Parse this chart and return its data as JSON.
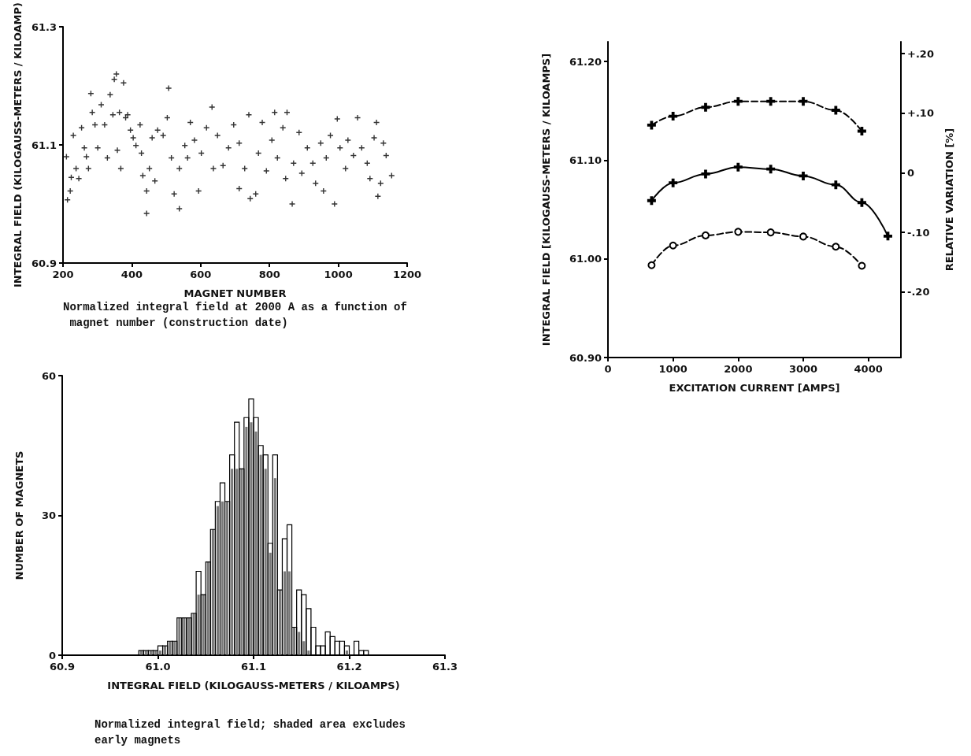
{
  "chart_data": [
    {
      "type": "scatter",
      "xlabel": "MAGNET NUMBER",
      "ylabel": "INTEGRAL FIELD (KILOGAUSS-METERS / KILOAMP)",
      "annotations": [
        "Normalized integral field at 2000 A as a function of magnet number (construction date)"
      ],
      "xlim": [
        200,
        1200
      ],
      "xticks": [
        200,
        400,
        600,
        800,
        1000,
        1200
      ],
      "ylim": [
        60.9,
        61.3
      ],
      "yticks": [
        60.9,
        61.1,
        61.3
      ],
      "marker": "cross",
      "grid": false,
      "x": [
        210,
        213,
        221,
        224,
        230,
        238,
        246,
        254,
        262,
        268,
        274,
        281,
        285,
        293,
        301,
        311,
        321,
        329,
        337,
        345,
        349,
        355,
        358,
        364,
        368,
        376,
        382,
        388,
        396,
        404,
        412,
        424,
        428,
        432,
        443,
        443,
        451,
        459,
        467,
        475,
        491,
        503,
        507,
        515,
        523,
        538,
        538,
        554,
        562,
        570,
        582,
        594,
        602,
        617,
        633,
        637,
        649,
        665,
        681,
        696,
        712,
        712,
        728,
        740,
        744,
        760,
        768,
        779,
        791,
        807,
        815,
        823,
        839,
        847,
        851,
        866,
        870,
        886,
        894,
        910,
        926,
        934,
        949,
        957,
        965,
        977,
        989,
        997,
        1005,
        1021,
        1028,
        1044,
        1056,
        1068,
        1084,
        1092,
        1104,
        1111,
        1115,
        1123,
        1131,
        1139,
        1155
      ],
      "series": [
        {
          "color": "#000000",
          "values": [
            61.08,
            61.007,
            61.022,
            61.045,
            61.116,
            61.06,
            61.043,
            61.129,
            61.095,
            61.08,
            61.06,
            61.187,
            61.155,
            61.134,
            61.095,
            61.168,
            61.134,
            61.078,
            61.185,
            61.151,
            61.211,
            61.22,
            61.091,
            61.155,
            61.06,
            61.205,
            61.146,
            61.151,
            61.125,
            61.112,
            61.099,
            61.134,
            61.086,
            61.048,
            61.022,
            60.984,
            61.06,
            61.112,
            61.039,
            61.125,
            61.116,
            61.146,
            61.196,
            61.078,
            61.017,
            60.992,
            61.06,
            61.099,
            61.078,
            61.138,
            61.108,
            61.022,
            61.086,
            61.129,
            61.164,
            61.06,
            61.116,
            61.065,
            61.095,
            61.134,
            61.103,
            61.026,
            61.06,
            61.151,
            61.009,
            61.017,
            61.086,
            61.138,
            61.056,
            61.108,
            61.155,
            61.078,
            61.129,
            61.043,
            61.155,
            61.0,
            61.069,
            61.121,
            61.052,
            61.095,
            61.069,
            61.035,
            61.103,
            61.022,
            61.078,
            61.116,
            61.0,
            61.144,
            61.095,
            61.06,
            61.108,
            61.082,
            61.146,
            61.095,
            61.069,
            61.043,
            61.112,
            61.138,
            61.013,
            61.035,
            61.103,
            61.082,
            61.048
          ]
        }
      ]
    },
    {
      "type": "line",
      "xlabel": "EXCITATION CURRENT [AMPS]",
      "ylabel": "INTEGRAL FIELD [KILOGAUSS-METERS / KILOAMPS]",
      "y2label": "RELATIVE VARIATION [%]",
      "xlim": [
        0,
        4500
      ],
      "xticks": [
        0,
        1000,
        2000,
        3000,
        4000
      ],
      "ylim": [
        60.9,
        61.22
      ],
      "yticks": [
        {
          "value": 60.9,
          "label": "60.90"
        },
        {
          "value": 61.0,
          "label": "61.00"
        },
        {
          "value": 61.1,
          "label": "61.10"
        },
        {
          "value": 61.2,
          "label": "61.20"
        }
      ],
      "y2lim": [
        -0.31,
        0.22
      ],
      "y2ticks": [
        {
          "value": -0.2,
          "label": "-.20"
        },
        {
          "value": -0.1,
          "label": "-.10"
        },
        0,
        {
          "value": 0.1,
          "label": "+.10"
        },
        {
          "value": 0.2,
          "label": "+.20"
        }
      ],
      "grid": false,
      "x": [
        670,
        1000,
        1500,
        2000,
        2500,
        3000,
        3500,
        3900,
        4300
      ],
      "series": [
        {
          "color": "#000000",
          "axis": "y2",
          "marker": "cross",
          "line_style": "dashed",
          "values": [
            0.08,
            0.095,
            0.11,
            0.12,
            0.12,
            0.12,
            0.105,
            0.07,
            null
          ]
        },
        {
          "color": "#000000",
          "marker": "cross",
          "line_style": "solid",
          "values": [
            61.059,
            61.077,
            61.086,
            61.093,
            61.091,
            61.084,
            61.075,
            61.057,
            61.023
          ]
        },
        {
          "color": "#000000",
          "axis": "y2",
          "marker": "circle",
          "line_style": "dashed",
          "values": [
            -0.155,
            -0.122,
            -0.105,
            -0.099,
            -0.1,
            -0.107,
            -0.124,
            -0.156,
            null
          ]
        }
      ]
    },
    {
      "type": "histogram",
      "xlabel": "INTEGRAL FIELD (KILOGAUSS-METERS / KILOAMPS)",
      "ylabel": "NUMBER OF MAGNETS",
      "annotations": [
        "Normalized integral field; shaded area excludes early magnets"
      ],
      "xlim": [
        60.9,
        61.3
      ],
      "xticks": [
        60.9,
        {
          "value": 61.0,
          "label": "61.0"
        },
        61.1,
        61.2,
        61.3
      ],
      "ylim": [
        0,
        60
      ],
      "yticks": [
        0,
        30,
        60
      ],
      "grid": false,
      "bins": [
        60.98,
        60.985,
        60.99,
        60.995,
        61.0,
        61.005,
        61.01,
        61.015,
        61.02,
        61.025,
        61.03,
        61.035,
        61.04,
        61.045,
        61.05,
        61.055,
        61.06,
        61.065,
        61.07,
        61.075,
        61.08,
        61.085,
        61.09,
        61.095,
        61.1,
        61.105,
        61.11,
        61.115,
        61.12,
        61.125,
        61.13,
        61.135,
        61.14,
        61.145,
        61.15,
        61.155,
        61.16,
        61.165,
        61.17,
        61.175,
        61.18,
        61.185,
        61.19,
        61.195,
        61.2,
        61.205,
        61.21,
        61.215,
        61.22
      ],
      "series": [
        {
          "color": "#000000",
          "values": [
            1,
            1,
            1,
            1,
            2,
            2,
            3,
            3,
            8,
            8,
            8,
            9,
            18,
            13,
            20,
            27,
            33,
            37,
            33,
            43,
            50,
            40,
            51,
            55,
            51,
            45,
            43,
            24,
            43,
            14,
            25,
            28,
            6,
            14,
            13,
            10,
            6,
            2,
            2,
            5,
            4,
            3,
            3,
            2,
            0,
            3,
            1,
            1
          ]
        },
        {
          "color": "#7a7a7a",
          "values": [
            1,
            1,
            1,
            1,
            1,
            2,
            3,
            3,
            8,
            8,
            8,
            9,
            13,
            13,
            20,
            27,
            32,
            33,
            33,
            40,
            40,
            40,
            49,
            50,
            48,
            43,
            40,
            22,
            38,
            14,
            18,
            18,
            6,
            5,
            3,
            1,
            0,
            0,
            0,
            0,
            0,
            0,
            0,
            1,
            0,
            0,
            0,
            0
          ]
        }
      ]
    }
  ]
}
